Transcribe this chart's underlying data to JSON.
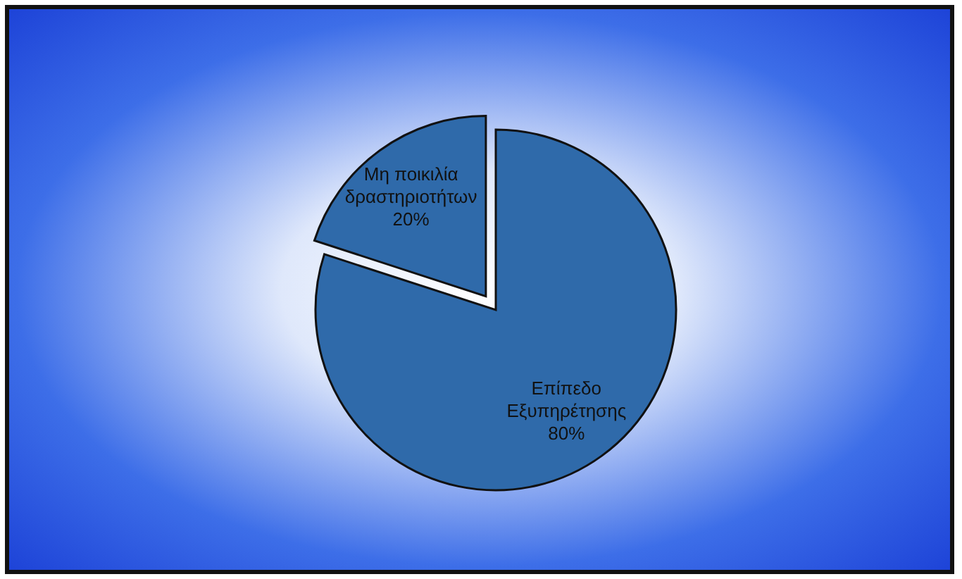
{
  "chart_data": {
    "type": "pie",
    "categories": [
      "Επίπεδο Εξυπηρέτησης",
      "Μη ποικιλία δραστηριοτήτων"
    ],
    "values": [
      80,
      20
    ],
    "colors": [
      "#2f6aaa",
      "#2f6aaa"
    ],
    "value_labels": [
      "80%",
      "20%"
    ],
    "legend": false
  }
}
